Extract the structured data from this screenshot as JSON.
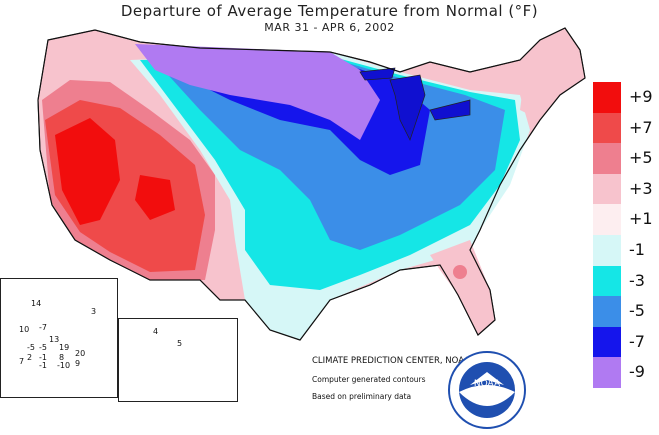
{
  "title": "Departure of Average Temperature from Normal (°F)",
  "subtitle": "MAR 31 - APR  6, 2002",
  "legend": [
    {
      "label": "+9",
      "color": "#f20d0d"
    },
    {
      "label": "+7",
      "color": "#ef4a4a"
    },
    {
      "label": "+5",
      "color": "#ee7f8f"
    },
    {
      "label": "+3",
      "color": "#f7c3cd"
    },
    {
      "label": "+1",
      "color": "#fdeef0"
    },
    {
      "label": "-1",
      "color": "#d6f7f7"
    },
    {
      "label": "-3",
      "color": "#15e6e6"
    },
    {
      "label": "-5",
      "color": "#3b8ee8"
    },
    {
      "label": "-7",
      "color": "#1515ec"
    },
    {
      "label": "-9",
      "color": "#b07af2"
    }
  ],
  "credits": {
    "line1": "CLIMATE PREDICTION CENTER, NOAA",
    "line2": "Computer generated contours",
    "line3": "Based on preliminary data"
  },
  "alaska_labels": [
    "14",
    "3",
    "10",
    "-7",
    "13",
    "-5",
    "-5",
    "19",
    "2",
    "-1",
    "8",
    "20",
    "7",
    "-1",
    "-10",
    "9"
  ],
  "hawaii_labels": [
    "4",
    "5"
  ],
  "logo": {
    "text": "NOAA"
  }
}
